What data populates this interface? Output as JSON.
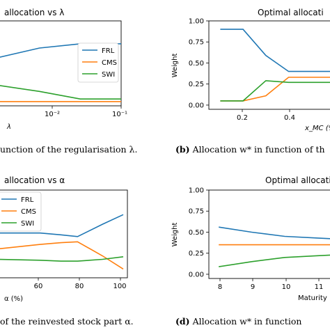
{
  "chart_data": [
    {
      "id": "a",
      "type": "line",
      "title": "Optimal allocation vs λ",
      "title_visible": "allocation vs  λ",
      "xlabel": "λ",
      "xscale": "log",
      "xlim": [
        0.0001,
        0.1
      ],
      "xticks": [
        "10⁻²",
        "10⁻¹"
      ],
      "ylim": [
        0,
        1
      ],
      "legend": "middle-right",
      "grid": false,
      "series": [
        {
          "name": "FRL",
          "color": "#1f77b4",
          "x": [
            0.0001,
            0.001,
            0.01,
            0.1
          ],
          "y": [
            0.57,
            0.68,
            0.73,
            0.73
          ]
        },
        {
          "name": "CMS",
          "color": "#ff7f0e",
          "x": [
            0.0001,
            0.001,
            0.01,
            0.1
          ],
          "y": [
            0.05,
            0.05,
            0.05,
            0.05
          ]
        },
        {
          "name": "SWI",
          "color": "#2ca02c",
          "x": [
            0.0001,
            0.001,
            0.01,
            0.1
          ],
          "y": [
            0.24,
            0.17,
            0.08,
            0.08
          ]
        }
      ],
      "caption": "unction of the regularisation λ."
    },
    {
      "id": "b",
      "type": "line",
      "title": "Optimal allocation",
      "title_visible": "Optimal allocati",
      "xlabel": "x_MC (%",
      "ylabel": "Weight",
      "xlim": [
        0.05,
        0.6
      ],
      "xticks": [
        "0.2",
        "0.4"
      ],
      "ylim": [
        -0.05,
        1.0
      ],
      "yticks": [
        "0.00",
        "0.25",
        "0.50",
        "0.75",
        "1.00"
      ],
      "series": [
        {
          "name": "FRL",
          "color": "#1f77b4",
          "x": [
            0.1,
            0.2,
            0.3,
            0.4,
            0.5,
            0.6
          ],
          "y": [
            0.9,
            0.9,
            0.59,
            0.4,
            0.4,
            0.4
          ]
        },
        {
          "name": "CMS",
          "color": "#ff7f0e",
          "x": [
            0.1,
            0.2,
            0.3,
            0.4,
            0.5,
            0.6
          ],
          "y": [
            0.05,
            0.05,
            0.11,
            0.33,
            0.33,
            0.33
          ]
        },
        {
          "name": "SWI",
          "color": "#2ca02c",
          "x": [
            0.1,
            0.2,
            0.3,
            0.4,
            0.5,
            0.6
          ],
          "y": [
            0.05,
            0.05,
            0.29,
            0.27,
            0.27,
            0.27
          ]
        }
      ],
      "caption_label": "(b)",
      "caption_text": "Allocation w* in function of th"
    },
    {
      "id": "c",
      "type": "line",
      "title": "Optimal allocation vs α",
      "title_visible": "allocation vs  α",
      "xlabel": "α (%)",
      "xlim": [
        40,
        102
      ],
      "xticks": [
        "60",
        "80",
        "100"
      ],
      "ylim": [
        0,
        1
      ],
      "legend": "top-left",
      "series": [
        {
          "name": "FRL",
          "color": "#1f77b4",
          "x": [
            40,
            60,
            70,
            78,
            90,
            100
          ],
          "y": [
            0.51,
            0.51,
            0.49,
            0.47,
            0.61,
            0.72
          ]
        },
        {
          "name": "CMS",
          "color": "#ff7f0e",
          "x": [
            40,
            60,
            70,
            78,
            90,
            100
          ],
          "y": [
            0.33,
            0.38,
            0.4,
            0.41,
            0.25,
            0.1
          ]
        },
        {
          "name": "SWI",
          "color": "#2ca02c",
          "x": [
            40,
            60,
            70,
            78,
            90,
            100
          ],
          "y": [
            0.21,
            0.2,
            0.19,
            0.19,
            0.21,
            0.24
          ]
        }
      ],
      "caption": "of the reinvested stock part α."
    },
    {
      "id": "d",
      "type": "line",
      "title": "Optimal allocation",
      "title_visible": "Optimal allocati",
      "xlabel": "Maturity",
      "ylabel": "Weight",
      "xlim": [
        7.7,
        11.5
      ],
      "xticks": [
        "8",
        "9",
        "10",
        "11"
      ],
      "ylim": [
        -0.05,
        1.0
      ],
      "yticks": [
        "0.00",
        "0.25",
        "0.50",
        "0.75",
        "1.00"
      ],
      "series": [
        {
          "name": "FRL",
          "color": "#1f77b4",
          "x": [
            8,
            9,
            10,
            11,
            12
          ],
          "y": [
            0.56,
            0.5,
            0.45,
            0.43,
            0.41
          ]
        },
        {
          "name": "CMS",
          "color": "#ff7f0e",
          "x": [
            8,
            9,
            10,
            11,
            12
          ],
          "y": [
            0.35,
            0.35,
            0.35,
            0.35,
            0.35
          ]
        },
        {
          "name": "SWI",
          "color": "#2ca02c",
          "x": [
            8,
            9,
            10,
            11,
            12
          ],
          "y": [
            0.09,
            0.15,
            0.2,
            0.22,
            0.24
          ]
        }
      ],
      "caption_label": "(d)",
      "caption_text": "Allocation w* in function"
    }
  ]
}
